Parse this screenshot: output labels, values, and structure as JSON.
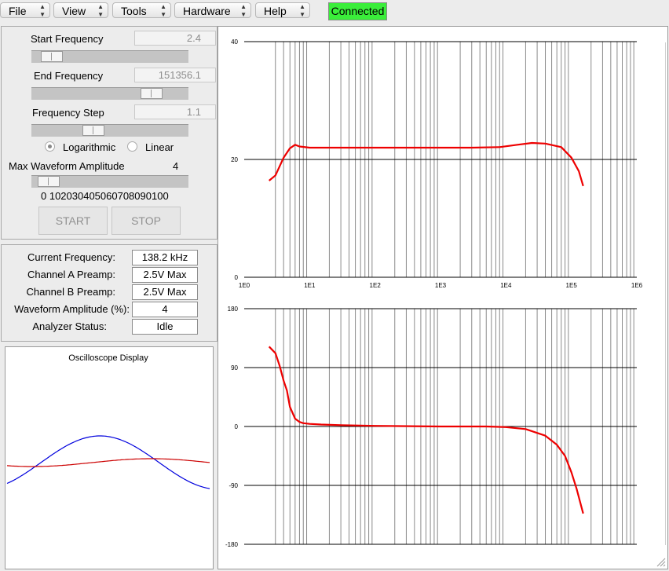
{
  "menubar": {
    "menus": [
      "File",
      "View",
      "Tools",
      "Hardware",
      "Help"
    ],
    "status": "Connected",
    "status_color": "#3aee3a"
  },
  "sweep": {
    "start_frequency": {
      "label": "Start Frequency",
      "value": "2.4",
      "slider_fraction": 0.07
    },
    "end_frequency": {
      "label": "End Frequency",
      "value": "151356.1",
      "slider_fraction": 0.78
    },
    "frequency_step": {
      "label": "Frequency Step",
      "value": "1.1",
      "slider_fraction": 0.35
    },
    "scale_options": [
      "Logarithmic",
      "Linear"
    ],
    "scale_selected": "Logarithmic",
    "amplitude": {
      "label": "Max Waveform Amplitude",
      "value": "4",
      "slider_fraction": 0.04,
      "ticks": "0 102030405060708090100"
    },
    "start_button": "START",
    "stop_button": "STOP"
  },
  "status": {
    "rows": [
      {
        "label": "Current Frequency:",
        "value": "138.2 kHz"
      },
      {
        "label": "Channel A Preamp:",
        "value": "2.5V Max"
      },
      {
        "label": "Channel B Preamp:",
        "value": "2.5V Max"
      },
      {
        "label": "Waveform Amplitude (%):",
        "value": "4"
      },
      {
        "label": "Analyzer Status:",
        "value": "Idle"
      }
    ]
  },
  "oscilloscope": {
    "title": "Oscilloscope Display",
    "channel_a_color": "#0000dd",
    "channel_b_color": "#cc0000"
  },
  "chart_data": [
    {
      "type": "line",
      "x_scale": "log",
      "xlim": [
        1,
        1000000
      ],
      "ylim": [
        0,
        40
      ],
      "x_tick_labels": [
        "1E0",
        "1E1",
        "1E2",
        "1E3",
        "1E4",
        "1E5",
        "1E6"
      ],
      "y_tick_labels": [
        "40",
        "20",
        "0"
      ],
      "y_ticks": [
        40,
        20,
        0
      ],
      "grid": "log x minor lines, y lines at 20 and 40",
      "series_color": "#ee0000",
      "x": [
        2.4,
        3,
        4,
        5,
        6,
        7,
        10,
        30,
        100,
        1000,
        3000,
        8000,
        15000,
        25000,
        40000,
        70000,
        100000,
        130000,
        151356
      ],
      "y": [
        16.4,
        17.3,
        20.3,
        21.9,
        22.5,
        22.2,
        22.0,
        22.0,
        22.0,
        22.0,
        22.0,
        22.1,
        22.5,
        22.8,
        22.7,
        22.1,
        20.3,
        18.0,
        15.5
      ]
    },
    {
      "type": "line",
      "x_scale": "log",
      "xlim": [
        1,
        1000000
      ],
      "ylim": [
        -180,
        180
      ],
      "x_tick_labels": [],
      "y_tick_labels": [
        "180",
        "90",
        "0",
        "-90",
        "-180"
      ],
      "y_ticks": [
        180,
        90,
        0,
        -90,
        -180
      ],
      "grid": "log x minor lines, y lines every 90",
      "series_color": "#ee0000",
      "x": [
        2.4,
        3,
        3.5,
        4,
        4.5,
        5,
        6,
        7,
        8,
        10,
        15,
        30,
        100,
        1000,
        5000,
        10000,
        20000,
        40000,
        60000,
        80000,
        100000,
        120000,
        151356
      ],
      "y": [
        122,
        112,
        92,
        70,
        55,
        30,
        12,
        7,
        5,
        4,
        3,
        2,
        1,
        0,
        0,
        -1,
        -4,
        -14,
        -28,
        -45,
        -70,
        -95,
        -133
      ]
    }
  ]
}
